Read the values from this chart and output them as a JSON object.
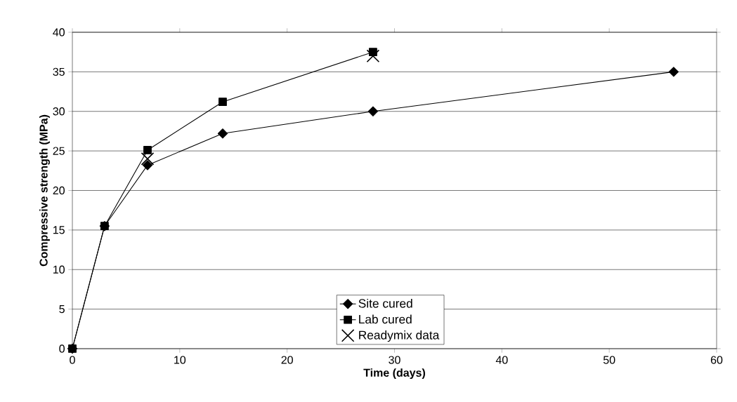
{
  "chart_data": {
    "type": "line",
    "xlabel": "Time (days)",
    "ylabel": "Compressive strength (MPa)",
    "xlim": [
      0,
      60
    ],
    "ylim": [
      0,
      40
    ],
    "xticks": [
      0,
      10,
      20,
      30,
      40,
      50,
      60
    ],
    "yticks": [
      0,
      5,
      10,
      15,
      20,
      25,
      30,
      35,
      40
    ],
    "grid": "y",
    "legend": "bottom",
    "line_style": "solid",
    "series": [
      {
        "name": "Site cured",
        "color": "#000000",
        "marker": "diamond",
        "x": [
          0,
          3,
          7,
          14,
          28,
          56
        ],
        "values": [
          0,
          15.5,
          23.2,
          27.2,
          30,
          35
        ]
      },
      {
        "name": "Lab cured",
        "color": "#000000",
        "marker": "square",
        "x": [
          0,
          3,
          7,
          14,
          28
        ],
        "values": [
          0,
          15.5,
          25.1,
          31.2,
          37.5
        ]
      },
      {
        "name": "Readymix data",
        "type": "scatter",
        "color": "#000000",
        "marker": "cross",
        "x": [
          7,
          28
        ],
        "values": [
          24,
          37
        ]
      }
    ]
  }
}
